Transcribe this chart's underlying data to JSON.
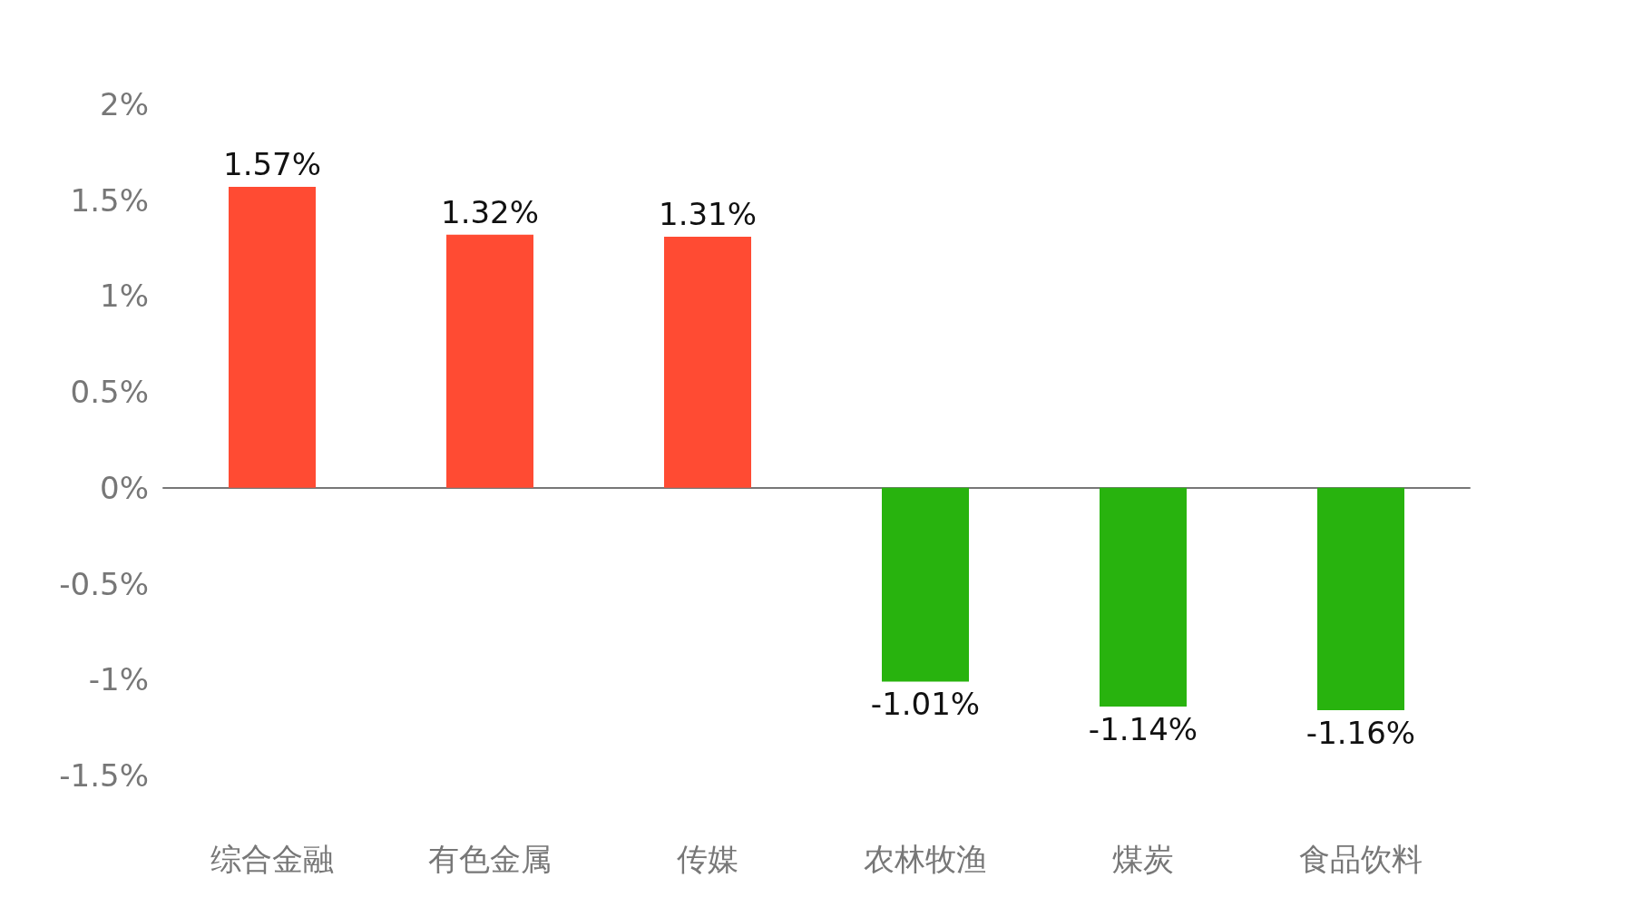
{
  "chart_data": {
    "type": "bar",
    "categories": [
      "综合金融",
      "有色金属",
      "传媒",
      "农林牧渔",
      "煤炭",
      "食品饮料"
    ],
    "values": [
      1.57,
      1.32,
      1.31,
      -1.01,
      -1.14,
      -1.16
    ],
    "colors": [
      "#ff4b33",
      "#ff4b33",
      "#ff4b33",
      "#28b30e",
      "#28b30e",
      "#28b30e"
    ],
    "value_labels": [
      "1.57%",
      "1.32%",
      "1.31%",
      "-1.01%",
      "-1.14%",
      "-1.16%"
    ],
    "ylim": [
      -1.5,
      2
    ],
    "yticks": [
      {
        "value": -1.5,
        "label": "-1.5%"
      },
      {
        "value": -1,
        "label": "-1%"
      },
      {
        "value": -0.5,
        "label": "-0.5%"
      },
      {
        "value": 0,
        "label": "0%"
      },
      {
        "value": 0.5,
        "label": "0.5%"
      },
      {
        "value": 1,
        "label": "1%"
      },
      {
        "value": 1.5,
        "label": "1.5%"
      },
      {
        "value": 2,
        "label": "2%"
      }
    ]
  }
}
